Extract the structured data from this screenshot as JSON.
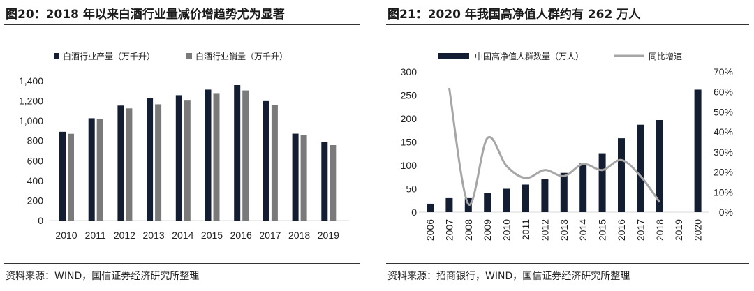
{
  "left": {
    "title": "图20：2018 年以来白酒行业量减价增趋势尤为显著",
    "source": "资料来源：WIND，国信证券经济研究所整理"
  },
  "right": {
    "title": "图21：2020 年我国高净值人群约有 262 万人",
    "source": "资料来源：招商银行，WIND，国信证券经济研究所整理"
  },
  "chart_data": [
    {
      "type": "bar",
      "categories": [
        "2010",
        "2011",
        "2012",
        "2013",
        "2014",
        "2015",
        "2016",
        "2017",
        "2018",
        "2019"
      ],
      "series": [
        {
          "name": "白酒行业产量（万千升）",
          "color": "#141e33",
          "values": [
            890,
            1026,
            1153,
            1226,
            1257,
            1313,
            1358,
            1198,
            871,
            786
          ]
        },
        {
          "name": "白酒行业销量（万千升）",
          "color": "#7a7a7a",
          "values": [
            870,
            1020,
            1125,
            1166,
            1203,
            1278,
            1305,
            1162,
            854,
            756
          ]
        }
      ],
      "ylim": [
        0,
        1400
      ],
      "yticks": [
        "0",
        "200",
        "400",
        "600",
        "800",
        "1,000",
        "1,200",
        "1,400"
      ],
      "legend": "top",
      "grid": false
    },
    {
      "type": "bar+line",
      "categories": [
        "2006",
        "2007",
        "2008",
        "2009",
        "2010",
        "2011",
        "2012",
        "2013",
        "2014",
        "2015",
        "2016",
        "2017",
        "2018",
        "2019",
        "2020"
      ],
      "series": [
        {
          "name": "中国高净值人群数量（万人）",
          "type": "bar",
          "axis": "left",
          "color": "#141e33",
          "values": [
            18,
            30,
            30,
            41,
            50,
            59,
            71,
            84,
            104,
            126,
            158,
            187,
            197,
            null,
            262
          ]
        },
        {
          "name": "同比增速",
          "type": "line",
          "axis": "right",
          "color": "#a6a6a6",
          "values": [
            null,
            62,
            4,
            37,
            23,
            17,
            21,
            18,
            24,
            21,
            26,
            18,
            5,
            null,
            null
          ]
        }
      ],
      "ylim": [
        0,
        300
      ],
      "yticks": [
        "0",
        "50",
        "100",
        "150",
        "200",
        "250",
        "300"
      ],
      "y2lim": [
        0,
        70
      ],
      "y2ticks": [
        "0%",
        "10%",
        "20%",
        "30%",
        "40%",
        "50%",
        "60%",
        "70%"
      ],
      "legend": "top",
      "grid": false
    }
  ]
}
